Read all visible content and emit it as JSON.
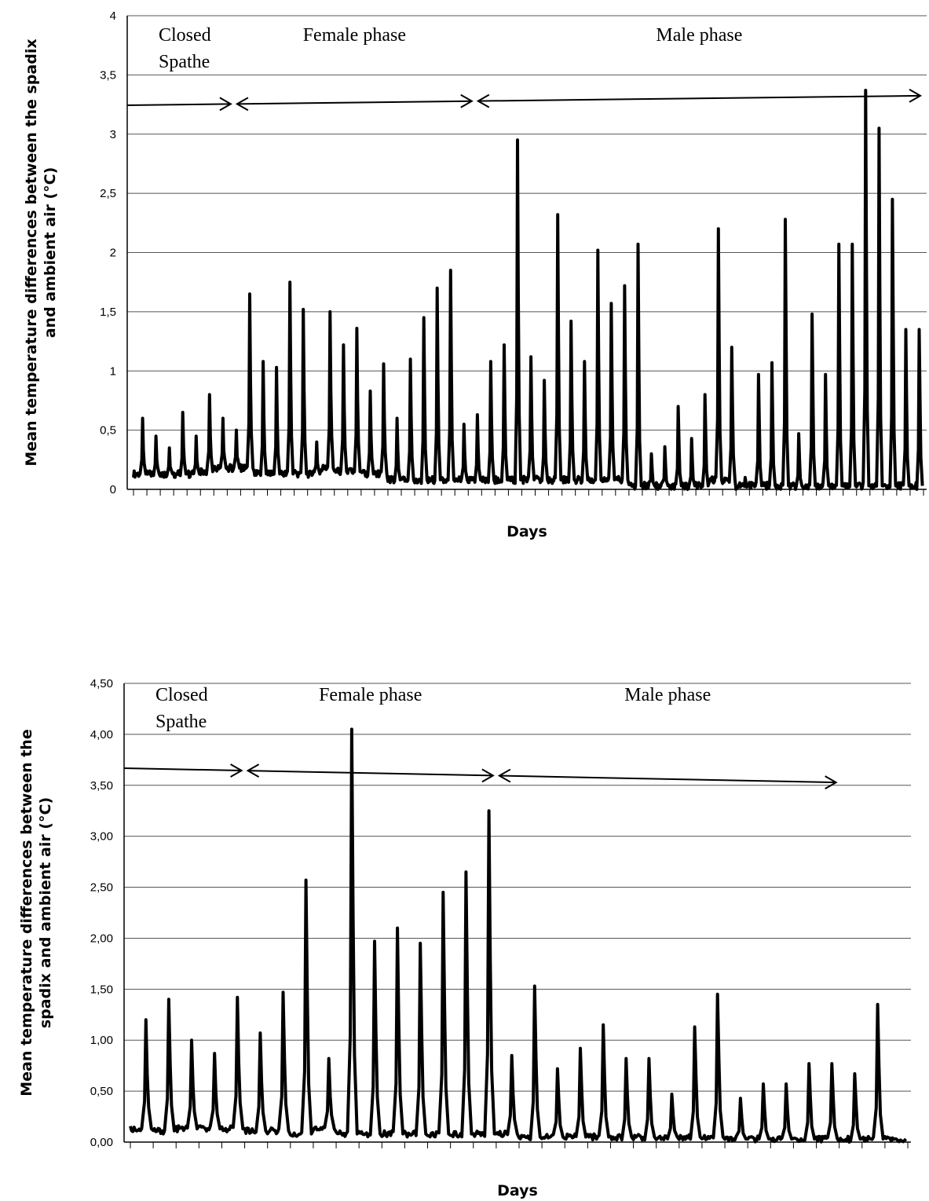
{
  "chart_data": [
    {
      "type": "line",
      "xlabel": "Days",
      "ylabel_line1": "Mean temperature differences between the spadix",
      "ylabel_line2": "and ambient air (°C)",
      "ylim": [
        0,
        4
      ],
      "yticks": [
        0,
        0.5,
        1,
        1.5,
        2,
        2.5,
        3,
        3.5,
        4
      ],
      "ytick_labels": [
        "0",
        "0,5",
        "1",
        "1,5",
        "2",
        "2,5",
        "3",
        "3,5",
        "4"
      ],
      "grid": true,
      "n_days": 59,
      "phases": [
        {
          "label_line1": "Closed",
          "label_line2": "Spathe",
          "start_day": 0,
          "end_day": 7.5
        },
        {
          "label_line1": "Female phase",
          "label_line2": "",
          "start_day": 7.5,
          "end_day": 25.5
        },
        {
          "label_line1": "Male phase",
          "label_line2": "",
          "start_day": 25.5,
          "end_day": 59
        }
      ],
      "daily_peaks": [
        0.6,
        0.45,
        0.35,
        0.65,
        0.45,
        0.8,
        0.6,
        0.5,
        1.65,
        1.08,
        1.03,
        1.75,
        1.52,
        0.4,
        1.5,
        1.22,
        1.36,
        0.83,
        1.06,
        0.6,
        1.1,
        1.45,
        1.7,
        1.85,
        0.55,
        0.63,
        1.08,
        1.22,
        2.95,
        1.12,
        0.92,
        2.32,
        1.42,
        1.08,
        2.02,
        1.57,
        1.72,
        2.07,
        0.3,
        0.36,
        0.7,
        0.43,
        0.8,
        2.2,
        1.2,
        0.1,
        0.97,
        1.07,
        2.28,
        0.47,
        1.48,
        0.97,
        2.07,
        2.07,
        3.37,
        3.05,
        2.45,
        1.35,
        1.35
      ],
      "daily_baseline": [
        0.1,
        0.1,
        0.1,
        0.1,
        0.1,
        0.12,
        0.15,
        0.15,
        0.15,
        0.1,
        0.1,
        0.1,
        0.1,
        0.1,
        0.15,
        0.12,
        0.12,
        0.1,
        0.1,
        0.05,
        0.05,
        0.05,
        0.05,
        0.05,
        0.05,
        0.05,
        0.05,
        0.05,
        0.05,
        0.05,
        0.05,
        0.05,
        0.05,
        0.05,
        0.05,
        0.05,
        0.05,
        0,
        0,
        0,
        0,
        0,
        0,
        0.05,
        0.05,
        0,
        0,
        0,
        0,
        0,
        0,
        0,
        0,
        0,
        0,
        0,
        0,
        0,
        0
      ]
    },
    {
      "type": "line",
      "xlabel": "Days",
      "ylabel_line1": "Mean temperature differences between the",
      "ylabel_line2": "spadix and ambient air (°C)",
      "ylim": [
        0,
        4.5
      ],
      "yticks": [
        0,
        0.5,
        1,
        1.5,
        2,
        2.5,
        3,
        3.5,
        4,
        4.5
      ],
      "ytick_labels": [
        "0,00",
        "0,50",
        "1,00",
        "1,50",
        "2,00",
        "2,50",
        "3,00",
        "3,50",
        "4,00",
        "4,50"
      ],
      "grid": true,
      "n_days": 34,
      "phases": [
        {
          "label_line1": "Closed",
          "label_line2": "Spathe",
          "start_day": 0,
          "end_day": 5
        },
        {
          "label_line1": "Female phase",
          "label_line2": "",
          "start_day": 5,
          "end_day": 16
        },
        {
          "label_line1": "Male phase",
          "label_line2": "",
          "start_day": 16,
          "end_day": 31
        }
      ],
      "daily_peaks": [
        1.2,
        1.4,
        1.0,
        0.87,
        1.42,
        1.07,
        1.47,
        2.57,
        0.82,
        4.05,
        1.97,
        2.1,
        1.95,
        2.45,
        2.65,
        3.25,
        0.85,
        1.53,
        0.72,
        0.92,
        1.15,
        0.82,
        0.82,
        0.47,
        1.13,
        1.45,
        0.43,
        0.57,
        0.57,
        0.77,
        0.77,
        0.67,
        1.35,
        0.02
      ],
      "daily_baseline": [
        0.1,
        0.08,
        0.1,
        0.1,
        0.1,
        0.08,
        0.08,
        0.05,
        0.1,
        0.05,
        0.05,
        0.05,
        0.05,
        0.05,
        0.05,
        0.05,
        0.05,
        0.02,
        0.02,
        0.02,
        0.02,
        0.02,
        0.02,
        0.02,
        0.02,
        0.02,
        0,
        0,
        0,
        0,
        0,
        0,
        0,
        0
      ]
    }
  ]
}
